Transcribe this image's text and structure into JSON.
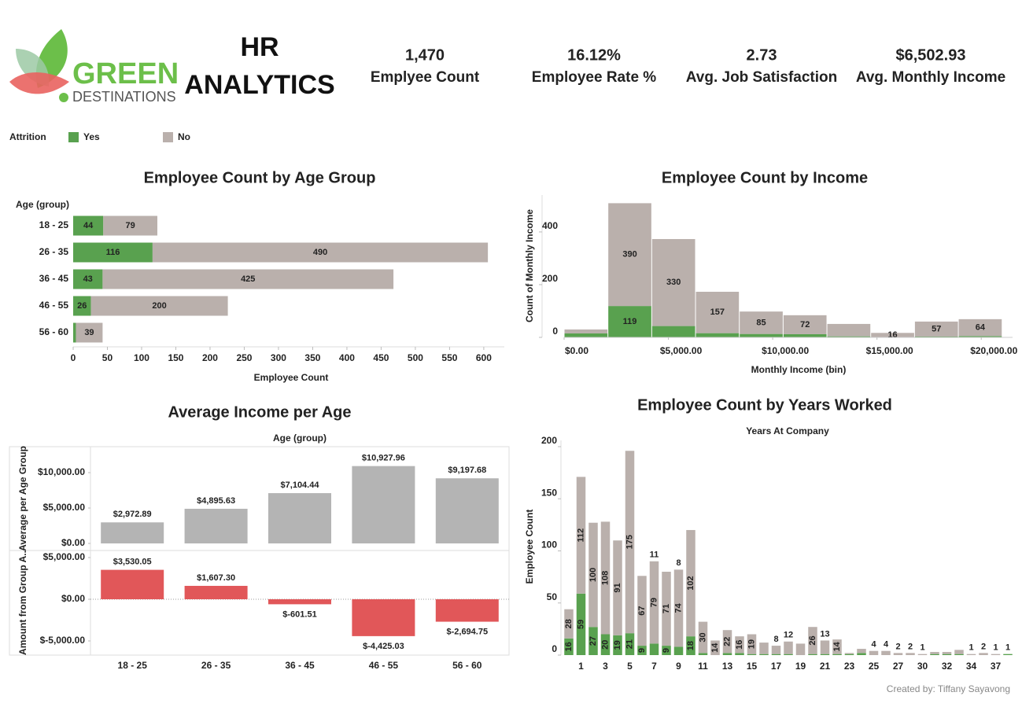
{
  "header": {
    "logo_top": "GREEN",
    "logo_bottom": "DESTINATIONS",
    "title_line1": "HR",
    "title_line2": "ANALYTICS"
  },
  "kpis": [
    {
      "value": "1,470",
      "label": "Emplyee Count"
    },
    {
      "value": "16.12%",
      "label": "Employee Rate %"
    },
    {
      "value": "2.73",
      "label": "Avg. Job Satisfaction"
    },
    {
      "value": "$6,502.93",
      "label": "Avg. Monthly Income"
    }
  ],
  "footer": "Created by: Tiffany Sayavong",
  "chart_data": [
    {
      "type": "hbar_stacked",
      "title": "Employee Count by Age Group",
      "legend_title": "Attrition",
      "ylabel": "Age (group)",
      "xlabel": "Employee Count",
      "categories": [
        "18 - 25",
        "26 - 35",
        "36 - 45",
        "46 - 55",
        "56 - 60"
      ],
      "series": [
        {
          "name": "Yes",
          "color": "#59a14f",
          "values": [
            44,
            116,
            43,
            26,
            4
          ],
          "value_labels": [
            "44",
            "116",
            "43",
            "26",
            null
          ]
        },
        {
          "name": "No",
          "color": "#bab0ac",
          "values": [
            79,
            490,
            425,
            200,
            39
          ],
          "value_labels": [
            "79",
            "490",
            "425",
            "200",
            "39"
          ]
        }
      ],
      "xlim": [
        0,
        630
      ],
      "xticks": [
        0,
        50,
        100,
        150,
        200,
        250,
        300,
        350,
        400,
        450,
        500,
        550,
        600
      ]
    },
    {
      "type": "histogram",
      "title": "Employee Count by Income",
      "xlabel": "Monthly Income (bin)",
      "ylabel": "Count of Monthly Income",
      "bins": [
        0,
        2100,
        4200,
        6300,
        8400,
        10500,
        12600,
        14700,
        16800,
        18900,
        21000
      ],
      "series": [
        {
          "name": "Yes",
          "color": "#59a14f",
          "values": [
            15,
            119,
            43,
            16,
            13,
            12,
            4,
            1,
            3,
            5
          ],
          "value_labels": [
            null,
            "119",
            null,
            null,
            null,
            null,
            null,
            null,
            null,
            null
          ]
        },
        {
          "name": "No",
          "color": "#bab0ac",
          "values": [
            15,
            390,
            330,
            157,
            85,
            72,
            47,
            16,
            57,
            64
          ],
          "value_labels": [
            null,
            "390",
            "330",
            "157",
            "85",
            "72",
            null,
            "16",
            "57",
            "64"
          ]
        }
      ],
      "xlim": [
        0,
        21500
      ],
      "xticks": [
        {
          "value": 0,
          "label": "$0.00"
        },
        {
          "value": 5000,
          "label": "$5,000.00"
        },
        {
          "value": 10000,
          "label": "$10,000.00"
        },
        {
          "value": 15000,
          "label": "$15,000.00"
        },
        {
          "value": 20000,
          "label": "$20,000.00"
        }
      ],
      "ylim": [
        0,
        540
      ],
      "yticks": [
        0,
        200,
        400
      ]
    },
    {
      "type": "bar_panes",
      "title": "Average Income per Age",
      "xheader": "Age (group)",
      "categories": [
        "18 - 25",
        "26 - 35",
        "36 - 45",
        "46 - 55",
        "56 - 60"
      ],
      "panes": [
        {
          "ylabel": "Average per Age Group",
          "color": "#b4b4b4",
          "values": [
            2972.89,
            4895.63,
            7104.44,
            10927.96,
            9197.68
          ],
          "value_labels": [
            "$2,972.89",
            "$4,895.63",
            "$7,104.44",
            "$10,927.96",
            "$9,197.68"
          ],
          "ylim": [
            -1000,
            13667
          ],
          "yticks": [
            {
              "value": 0,
              "label": "$0.00"
            },
            {
              "value": 5000,
              "label": "$5,000.00"
            },
            {
              "value": 10000,
              "label": "$10,000.00"
            }
          ]
        },
        {
          "ylabel": "Amount from Group A..",
          "color": "#e15759",
          "values": [
            3530.05,
            1607.3,
            -601.51,
            -4425.03,
            -2694.75
          ],
          "value_labels": [
            "$3,530.05",
            "$1,607.30",
            "$-601.51",
            "$-4,425.03",
            "$-2,694.75"
          ],
          "ylim": [
            -6700,
            5850
          ],
          "yticks": [
            {
              "value": -5000,
              "label": "$-5,000.00"
            },
            {
              "value": 0,
              "label": "$0.00"
            },
            {
              "value": 5000,
              "label": "$5,000.00"
            }
          ]
        }
      ]
    },
    {
      "type": "bar_stacked",
      "title": "Employee Count by Years Worked",
      "xheader": "Years At Company",
      "ylabel": "Employee Count",
      "categories": [
        null,
        1,
        null,
        3,
        null,
        5,
        null,
        7,
        null,
        9,
        null,
        11,
        null,
        13,
        null,
        15,
        null,
        17,
        null,
        19,
        null,
        21,
        null,
        23,
        null,
        25,
        null,
        27,
        null,
        30,
        null,
        32,
        null,
        34,
        null,
        37,
        null
      ],
      "series": [
        {
          "name": "Yes",
          "color": "#59a14f",
          "values": [
            16,
            59,
            27,
            20,
            19,
            21,
            9,
            11,
            9,
            8,
            18,
            2,
            0,
            2,
            2,
            1,
            1,
            1,
            1,
            0,
            1,
            1,
            1,
            1,
            2,
            0,
            0,
            0,
            0,
            0,
            1,
            1,
            1,
            0,
            0,
            0,
            1
          ],
          "value_labels": [
            "16",
            "59",
            "27",
            "20",
            "19",
            "21",
            "9",
            "11",
            "9",
            "8",
            "18",
            null,
            null,
            null,
            null,
            null,
            null,
            null,
            null,
            null,
            null,
            null,
            null,
            null,
            null,
            null,
            null,
            null,
            null,
            null,
            null,
            null,
            null,
            null,
            null,
            null,
            "1"
          ]
        },
        {
          "name": "No",
          "color": "#bab0ac",
          "values": [
            28,
            112,
            100,
            108,
            91,
            175,
            67,
            79,
            71,
            74,
            102,
            30,
            14,
            22,
            16,
            19,
            11,
            8,
            12,
            11,
            26,
            13,
            14,
            1,
            4,
            4,
            4,
            2,
            2,
            1,
            2,
            2,
            4,
            1,
            2,
            1,
            0
          ],
          "value_labels": [
            "28",
            "112",
            "100",
            "108",
            "91",
            "175",
            "67",
            "79",
            "71",
            "74",
            "102",
            "30",
            "14",
            "22",
            "16",
            "19",
            null,
            "8",
            "12",
            null,
            "26",
            "13",
            "14",
            null,
            null,
            "4",
            "4",
            "2",
            "2",
            "1",
            null,
            null,
            null,
            "1",
            "2",
            "1",
            null
          ]
        }
      ],
      "ylim": [
        0,
        206
      ],
      "yticks": [
        0,
        50,
        100,
        150,
        200
      ]
    }
  ]
}
